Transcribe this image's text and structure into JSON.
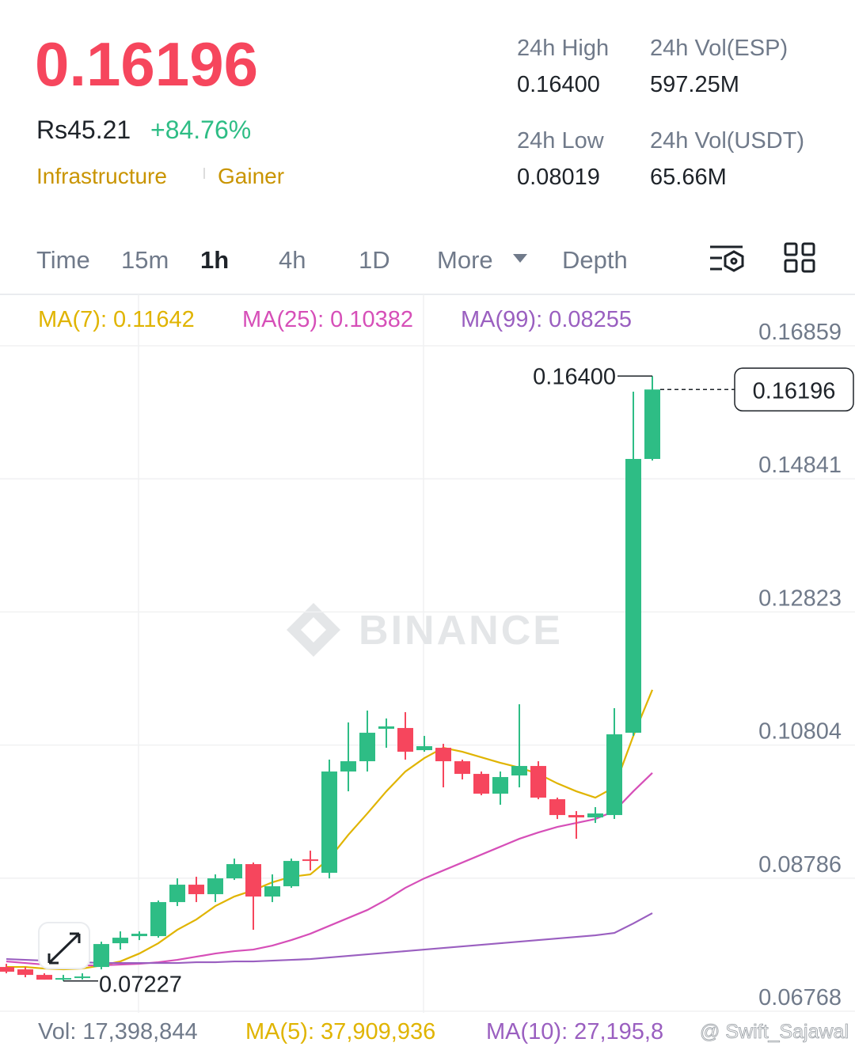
{
  "header": {
    "price": "0.16196",
    "local_price": "Rs45.21",
    "change": "+84.76%",
    "tags": [
      "Infrastructure",
      "Gainer"
    ],
    "stats": [
      {
        "label": "24h High",
        "value": "0.16400"
      },
      {
        "label": "24h Vol(ESP)",
        "value": "597.25M"
      },
      {
        "label": "24h Low",
        "value": "0.08019"
      },
      {
        "label": "24h Vol(USDT)",
        "value": "65.66M"
      }
    ]
  },
  "tabs": [
    "Time",
    "15m",
    "1h",
    "4h",
    "1D",
    "More",
    "Depth"
  ],
  "active_tab": 2,
  "chart_data": {
    "type": "candlestick",
    "up_color": "#2ebd85",
    "down_color": "#f6465d",
    "open": [
      0.07439,
      0.07403,
      0.07319,
      0.07247,
      0.07271,
      0.07439,
      0.07799,
      0.07907,
      0.07907,
      0.08423,
      0.08687,
      0.08543,
      0.08783,
      0.08999,
      0.08507,
      0.08663,
      0.09071,
      0.08867,
      0.10403,
      0.10559,
      0.11051,
      0.11063,
      0.10727,
      0.10763,
      0.10559,
      0.10367,
      0.10067,
      0.10343,
      0.10487,
      0.09983,
      0.09743,
      0.09707,
      0.09743,
      0.10991,
      0.15143
    ],
    "high": [
      0.07487,
      0.07439,
      0.07343,
      0.07319,
      0.07343,
      0.07823,
      0.07979,
      0.07979,
      0.08447,
      0.08783,
      0.08807,
      0.08843,
      0.09083,
      0.09023,
      0.08843,
      0.09083,
      0.09203,
      0.10583,
      0.11147,
      0.11327,
      0.11207,
      0.11303,
      0.10943,
      0.10823,
      0.10583,
      0.10403,
      0.10403,
      0.11423,
      0.10559,
      0.10007,
      0.09803,
      0.09863,
      0.11363,
      0.16163,
      0.164
    ],
    "low": [
      0.07343,
      0.07283,
      0.07247,
      0.07227,
      0.07247,
      0.07403,
      0.07703,
      0.07847,
      0.07883,
      0.08363,
      0.08423,
      0.08423,
      0.08759,
      0.08003,
      0.08423,
      0.08639,
      0.08903,
      0.08783,
      0.10103,
      0.10403,
      0.10763,
      0.10583,
      0.10703,
      0.10163,
      0.10283,
      0.10043,
      0.09899,
      0.10163,
      0.09983,
      0.09683,
      0.09383,
      0.09623,
      0.09683,
      0.10943,
      0.15119
    ],
    "close": [
      0.07367,
      0.07319,
      0.07247,
      0.07271,
      0.07295,
      0.07787,
      0.07883,
      0.07943,
      0.08423,
      0.08687,
      0.08543,
      0.08783,
      0.08999,
      0.08507,
      0.08663,
      0.09047,
      0.09047,
      0.10403,
      0.10559,
      0.10991,
      0.11087,
      0.10703,
      0.10787,
      0.10559,
      0.10367,
      0.10067,
      0.10319,
      0.10487,
      0.10007,
      0.09743,
      0.09707,
      0.09767,
      0.10967,
      0.15143,
      0.16196
    ],
    "ylim": [
      0.06768,
      0.16859
    ],
    "yticks": [
      0.16859,
      0.14841,
      0.12823,
      0.10804,
      0.08786,
      0.06768
    ],
    "grid": true,
    "ma_lines": [
      {
        "name": "MA(7): 0.11642",
        "color": "#e0b400",
        "values": [
          0.07439,
          0.07439,
          0.07415,
          0.07403,
          0.07415,
          0.07463,
          0.07523,
          0.07643,
          0.07799,
          0.08003,
          0.08159,
          0.08363,
          0.08507,
          0.08603,
          0.08723,
          0.08807,
          0.08843,
          0.09083,
          0.09443,
          0.09767,
          0.10103,
          0.10403,
          0.10607,
          0.10763,
          0.10703,
          0.10619,
          0.10535,
          0.10463,
          0.10367,
          0.10223,
          0.10103,
          0.10007,
          0.10163,
          0.10943,
          0.11642
        ]
      },
      {
        "name": "MA(25): 0.10382",
        "color": "#d64fb8",
        "values": [
          0.07523,
          0.07499,
          0.07475,
          0.07463,
          0.07463,
          0.07463,
          0.07475,
          0.07487,
          0.07511,
          0.07547,
          0.07595,
          0.07643,
          0.07679,
          0.07703,
          0.07763,
          0.07847,
          0.07943,
          0.08063,
          0.08183,
          0.08303,
          0.08459,
          0.08639,
          0.08783,
          0.08903,
          0.09023,
          0.09143,
          0.09263,
          0.09383,
          0.09479,
          0.09563,
          0.09623,
          0.09683,
          0.09803,
          0.10103,
          0.10382
        ]
      },
      {
        "name": "MA(99): 0.08255",
        "color": "#9a5fc0",
        "values": [
          0.07559,
          0.07547,
          0.07535,
          0.07523,
          0.07511,
          0.07499,
          0.07499,
          0.07499,
          0.07499,
          0.07499,
          0.07511,
          0.07511,
          0.07523,
          0.07523,
          0.07535,
          0.07547,
          0.07559,
          0.07583,
          0.07607,
          0.07631,
          0.07655,
          0.07679,
          0.07703,
          0.07727,
          0.07751,
          0.07775,
          0.07799,
          0.07823,
          0.07847,
          0.07871,
          0.07895,
          0.07919,
          0.07955,
          0.08099,
          0.08255
        ]
      }
    ],
    "high_label": "0.16400",
    "low_label": "0.07227",
    "watermark": "BINANCE"
  },
  "volume": {
    "labels": [
      {
        "text": "Vol: 17,398,844",
        "color": "#707a8a"
      },
      {
        "text": "MA(5): 37,909,936",
        "color": "#e0b400"
      },
      {
        "text": "MA(10): 27,195,8",
        "color": "#9a5fc0"
      }
    ]
  },
  "credit": "@ Swift_Sajawal"
}
